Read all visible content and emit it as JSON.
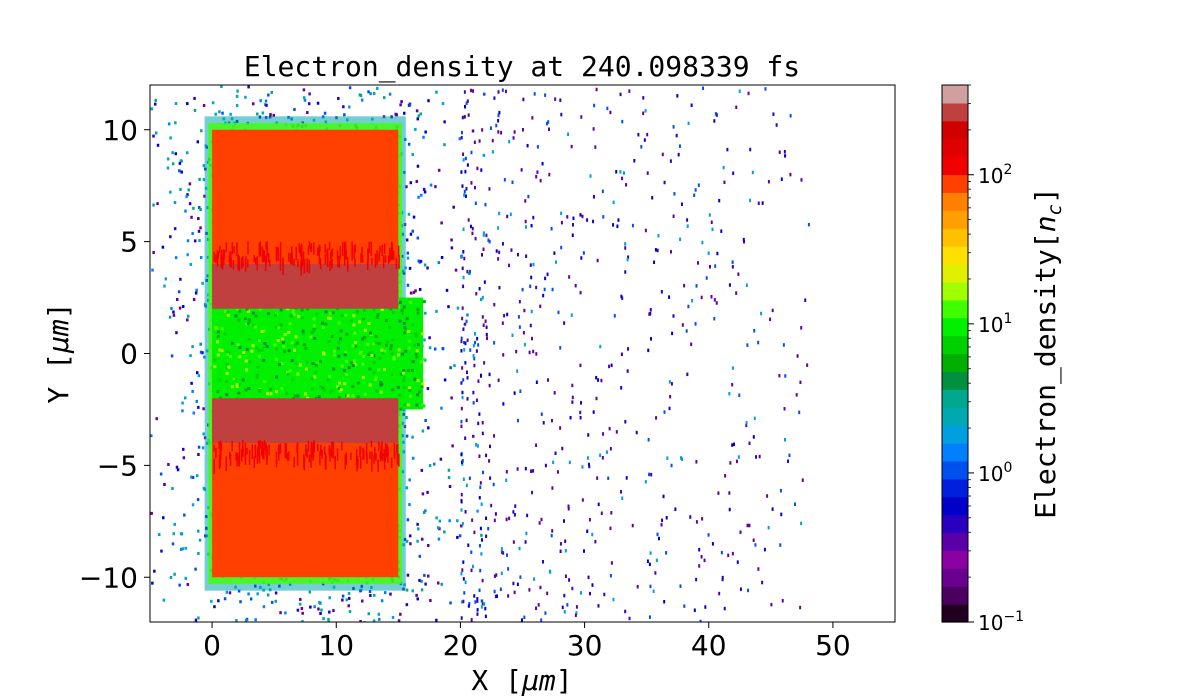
{
  "chart_data": {
    "type": "heatmap",
    "title": "Electron_density at 240.098339 fs",
    "xlabel": "X",
    "xlabel_unit": "μm",
    "ylabel": "Y",
    "ylabel_unit": "μm",
    "xlim": [
      -5,
      55
    ],
    "ylim": [
      -12,
      12
    ],
    "xticks": [
      0,
      10,
      20,
      30,
      40,
      50
    ],
    "yticks": [
      -10,
      -5,
      0,
      5,
      10
    ],
    "xtick_labels": [
      "0",
      "10",
      "20",
      "30",
      "40",
      "50"
    ],
    "ytick_labels": [
      "−10",
      "−5",
      "0",
      "5",
      "10"
    ],
    "grid": false,
    "colorbar": {
      "label": "Electron_density",
      "unit_symbol": "n",
      "unit_subscript": "c",
      "scale": "log",
      "range": [
        0.1,
        400
      ],
      "ticks": [
        {
          "base": "10",
          "exp": "−1",
          "value": 0.1
        },
        {
          "base": "10",
          "exp": "0",
          "value": 1
        },
        {
          "base": "10",
          "exp": "1",
          "value": 10
        },
        {
          "base": "10",
          "exp": "2",
          "value": 100
        }
      ],
      "colors": [
        "#200020",
        "#4b0060",
        "#6a0090",
        "#8a00a0",
        "#5a00a8",
        "#2a00c0",
        "#0000c8",
        "#0020e0",
        "#0050f0",
        "#0080ff",
        "#00a0e0",
        "#00a8b0",
        "#00a890",
        "#009040",
        "#00b000",
        "#00d000",
        "#00f000",
        "#40ff00",
        "#a0ff00",
        "#e0f000",
        "#ffe000",
        "#ffc000",
        "#ffa000",
        "#ff8000",
        "#ff4000",
        "#f00000",
        "#e00000",
        "#d00000",
        "#c04040",
        "#d0a0a0"
      ]
    },
    "regions": [
      {
        "name": "upper target block",
        "x": [
          0,
          15
        ],
        "y": [
          2.5,
          10
        ],
        "density": 100
      },
      {
        "name": "lower target block",
        "x": [
          0,
          15
        ],
        "y": [
          -10,
          -2.5
        ],
        "density": 100
      },
      {
        "name": "channel plasma",
        "x": [
          0,
          17
        ],
        "y": [
          -2.5,
          2.5
        ],
        "density": 10
      },
      {
        "name": "channel wall edge",
        "x": [
          0,
          15
        ],
        "y": [
          2.0,
          4.0
        ],
        "density": 300
      },
      {
        "name": "channel wall edge",
        "x": [
          0,
          15
        ],
        "y": [
          -4.0,
          -2.0
        ],
        "density": 300
      },
      {
        "name": "diffuse halo",
        "x": [
          -5,
          25
        ],
        "y": [
          -12,
          12
        ],
        "density": 1
      },
      {
        "name": "sparse scattered electrons",
        "x": [
          20,
          48
        ],
        "y": [
          -12,
          12
        ],
        "density": 0.3
      }
    ]
  }
}
